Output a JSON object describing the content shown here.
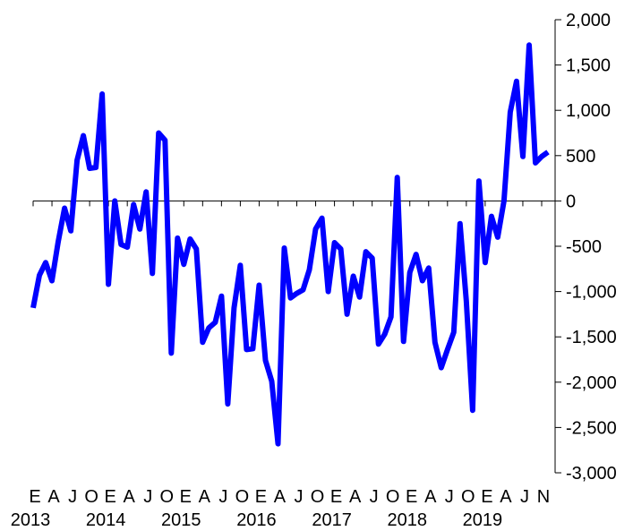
{
  "chart_data": {
    "type": "line",
    "title": "",
    "xlabel": "",
    "ylabel": "",
    "ylim": [
      -3000,
      2000
    ],
    "y_ticks": [
      2000,
      1500,
      1000,
      500,
      0,
      -500,
      -1000,
      -1500,
      -2000,
      -2500,
      -3000
    ],
    "y_tick_labels": [
      "2,000",
      "1,500",
      "1,000",
      "500",
      "0",
      "-500",
      "-1,000",
      "-1,500",
      "-2,000",
      "-2,500",
      "-3,000"
    ],
    "y_axis_position": "right",
    "grid": false,
    "x_month_labels": [
      {
        "index": 0,
        "label": "E"
      },
      {
        "index": 3,
        "label": "A"
      },
      {
        "index": 6,
        "label": "J"
      },
      {
        "index": 9,
        "label": "O"
      },
      {
        "index": 12,
        "label": "E"
      },
      {
        "index": 15,
        "label": "A"
      },
      {
        "index": 18,
        "label": "J"
      },
      {
        "index": 21,
        "label": "O"
      },
      {
        "index": 24,
        "label": "E"
      },
      {
        "index": 27,
        "label": "A"
      },
      {
        "index": 30,
        "label": "J"
      },
      {
        "index": 33,
        "label": "O"
      },
      {
        "index": 36,
        "label": "E"
      },
      {
        "index": 39,
        "label": "A"
      },
      {
        "index": 42,
        "label": "J"
      },
      {
        "index": 45,
        "label": "O"
      },
      {
        "index": 48,
        "label": "E"
      },
      {
        "index": 51,
        "label": "A"
      },
      {
        "index": 54,
        "label": "J"
      },
      {
        "index": 57,
        "label": "O"
      },
      {
        "index": 60,
        "label": "E"
      },
      {
        "index": 63,
        "label": "A"
      },
      {
        "index": 66,
        "label": "J"
      },
      {
        "index": 69,
        "label": "O"
      },
      {
        "index": 72,
        "label": "E"
      },
      {
        "index": 75,
        "label": "A"
      },
      {
        "index": 78,
        "label": "J"
      },
      {
        "index": 81,
        "label": "N"
      }
    ],
    "x_year_labels": [
      {
        "index": 0,
        "label": "2013"
      },
      {
        "index": 12,
        "label": "2014"
      },
      {
        "index": 24,
        "label": "2015"
      },
      {
        "index": 36,
        "label": "2016"
      },
      {
        "index": 48,
        "label": "2017"
      },
      {
        "index": 60,
        "label": "2018"
      },
      {
        "index": 72,
        "label": "2019"
      }
    ],
    "series": [
      {
        "color": "#0000ff",
        "values": [
          -1180,
          -820,
          -680,
          -880,
          -450,
          -80,
          -330,
          450,
          720,
          360,
          370,
          1180,
          -920,
          0,
          -480,
          -510,
          -40,
          -310,
          100,
          -800,
          750,
          670,
          -1680,
          -410,
          -700,
          -420,
          -530,
          -1560,
          -1400,
          -1340,
          -1050,
          -2240,
          -1180,
          -710,
          -1640,
          -1630,
          -930,
          -1760,
          -1990,
          -2680,
          -520,
          -1070,
          -1020,
          -980,
          -760,
          -310,
          -190,
          -1000,
          -460,
          -530,
          -1250,
          -830,
          -1060,
          -560,
          -630,
          -1580,
          -1470,
          -1280,
          260,
          -1550,
          -790,
          -590,
          -880,
          -740,
          -1560,
          -1840,
          -1640,
          -1450,
          -250,
          -1100,
          -2310,
          220,
          -680,
          -170,
          -400,
          0,
          980,
          1320,
          490,
          1720,
          420,
          490,
          540
        ]
      }
    ]
  }
}
